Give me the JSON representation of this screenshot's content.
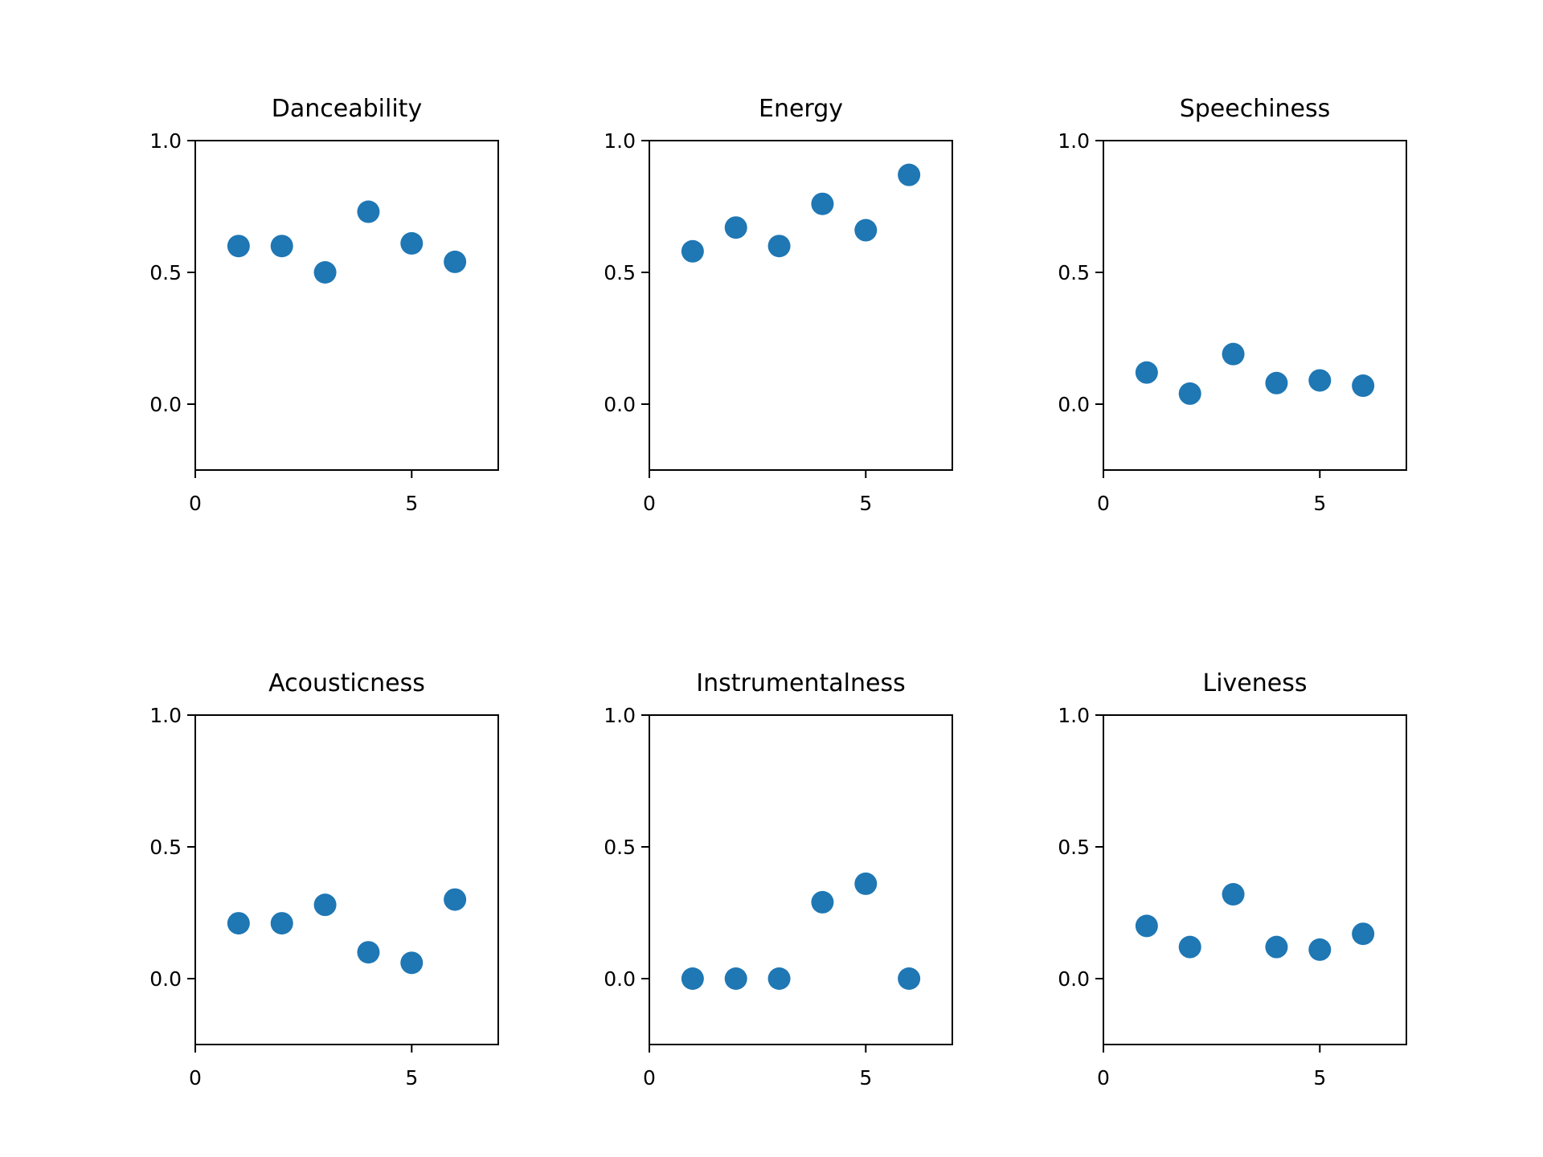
{
  "chart_data": [
    {
      "type": "scatter",
      "title": "Danceability",
      "x": [
        1,
        2,
        3,
        4,
        5,
        6
      ],
      "y": [
        0.6,
        0.6,
        0.5,
        0.73,
        0.61,
        0.54
      ],
      "xlim": [
        0,
        7
      ],
      "ylim": [
        -0.25,
        1.0
      ],
      "xticks": [
        "0",
        "5"
      ],
      "yticks": [
        "0.0",
        "0.5",
        "1.0"
      ],
      "color": "#1f77b4"
    },
    {
      "type": "scatter",
      "title": "Energy",
      "x": [
        1,
        2,
        3,
        4,
        5,
        6
      ],
      "y": [
        0.58,
        0.67,
        0.6,
        0.76,
        0.66,
        0.87
      ],
      "xlim": [
        0,
        7
      ],
      "ylim": [
        -0.25,
        1.0
      ],
      "xticks": [
        "0",
        "5"
      ],
      "yticks": [
        "0.0",
        "0.5",
        "1.0"
      ],
      "color": "#1f77b4"
    },
    {
      "type": "scatter",
      "title": "Speechiness",
      "x": [
        1,
        2,
        3,
        4,
        5,
        6
      ],
      "y": [
        0.12,
        0.04,
        0.19,
        0.08,
        0.09,
        0.07
      ],
      "xlim": [
        0,
        7
      ],
      "ylim": [
        -0.25,
        1.0
      ],
      "xticks": [
        "0",
        "5"
      ],
      "yticks": [
        "0.0",
        "0.5",
        "1.0"
      ],
      "color": "#1f77b4"
    },
    {
      "type": "scatter",
      "title": "Acousticness",
      "x": [
        1,
        2,
        3,
        4,
        5,
        6
      ],
      "y": [
        0.21,
        0.21,
        0.28,
        0.1,
        0.06,
        0.3
      ],
      "xlim": [
        0,
        7
      ],
      "ylim": [
        -0.25,
        1.0
      ],
      "xticks": [
        "0",
        "5"
      ],
      "yticks": [
        "0.0",
        "0.5",
        "1.0"
      ],
      "color": "#1f77b4"
    },
    {
      "type": "scatter",
      "title": "Instrumentalness",
      "x": [
        1,
        2,
        3,
        4,
        5,
        6
      ],
      "y": [
        0.0,
        0.0,
        0.0,
        0.29,
        0.36,
        0.0
      ],
      "xlim": [
        0,
        7
      ],
      "ylim": [
        -0.25,
        1.0
      ],
      "xticks": [
        "0",
        "5"
      ],
      "yticks": [
        "0.0",
        "0.5",
        "1.0"
      ],
      "color": "#1f77b4"
    },
    {
      "type": "scatter",
      "title": "Liveness",
      "x": [
        1,
        2,
        3,
        4,
        5,
        6
      ],
      "y": [
        0.2,
        0.12,
        0.32,
        0.12,
        0.11,
        0.17
      ],
      "xlim": [
        0,
        7
      ],
      "ylim": [
        -0.25,
        1.0
      ],
      "xticks": [
        "0",
        "5"
      ],
      "yticks": [
        "0.0",
        "0.5",
        "1.0"
      ],
      "color": "#1f77b4"
    }
  ]
}
